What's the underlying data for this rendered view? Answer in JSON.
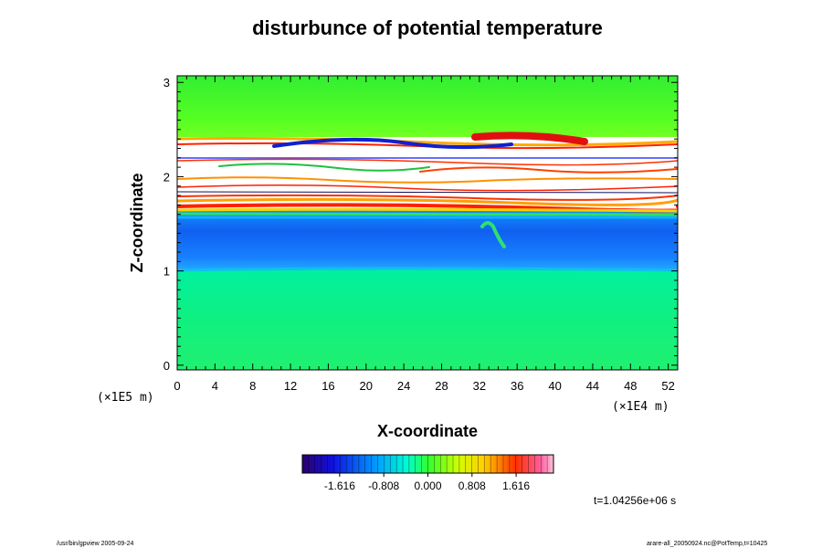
{
  "chart_data": {
    "type": "heatmap",
    "title": "disturbunce of potential temperature",
    "xlabel": "X-coordinate",
    "ylabel": "Z-coordinate",
    "x_scale_label": "(×1E4 m)",
    "y_scale_label": "(×1E5 m)",
    "xlim": [
      0,
      53
    ],
    "ylim": [
      -0.05,
      3.07
    ],
    "x_ticks": [
      "0",
      "4",
      "8",
      "12",
      "16",
      "20",
      "24",
      "28",
      "32",
      "36",
      "40",
      "44",
      "48",
      "52"
    ],
    "y_ticks": [
      "0",
      "1",
      "2",
      "3"
    ],
    "colorbar": {
      "range": [
        -2.3,
        2.3
      ],
      "ticks": [
        "-1.616",
        "-0.808",
        "0.000",
        "0.808",
        "1.616"
      ],
      "tick_values": [
        -1.616,
        -0.808,
        0.0,
        0.808,
        1.616
      ]
    },
    "time_label": "t=1.04256e+06 s",
    "bands": [
      {
        "z0": -0.05,
        "z1": 0.98,
        "value": 0.35
      },
      {
        "z0": 0.98,
        "z1": 1.58,
        "value": -0.85
      },
      {
        "z0": 1.58,
        "z1": 1.72,
        "value": -0.55
      },
      {
        "z0": 1.72,
        "z1": 2.35,
        "value": "saturated"
      },
      {
        "z0": 2.35,
        "z1": 2.7,
        "value": 0.3
      },
      {
        "z0": 2.7,
        "z1": 3.07,
        "value": 0.15
      }
    ]
  },
  "footer": {
    "left": "/usr/bin/gpview 2005-09-24",
    "right": "arare-all_20050924.nc@PotTemp,t=10425"
  },
  "colors": {
    "background": "#ffffff",
    "saturated": "#ffffff"
  }
}
